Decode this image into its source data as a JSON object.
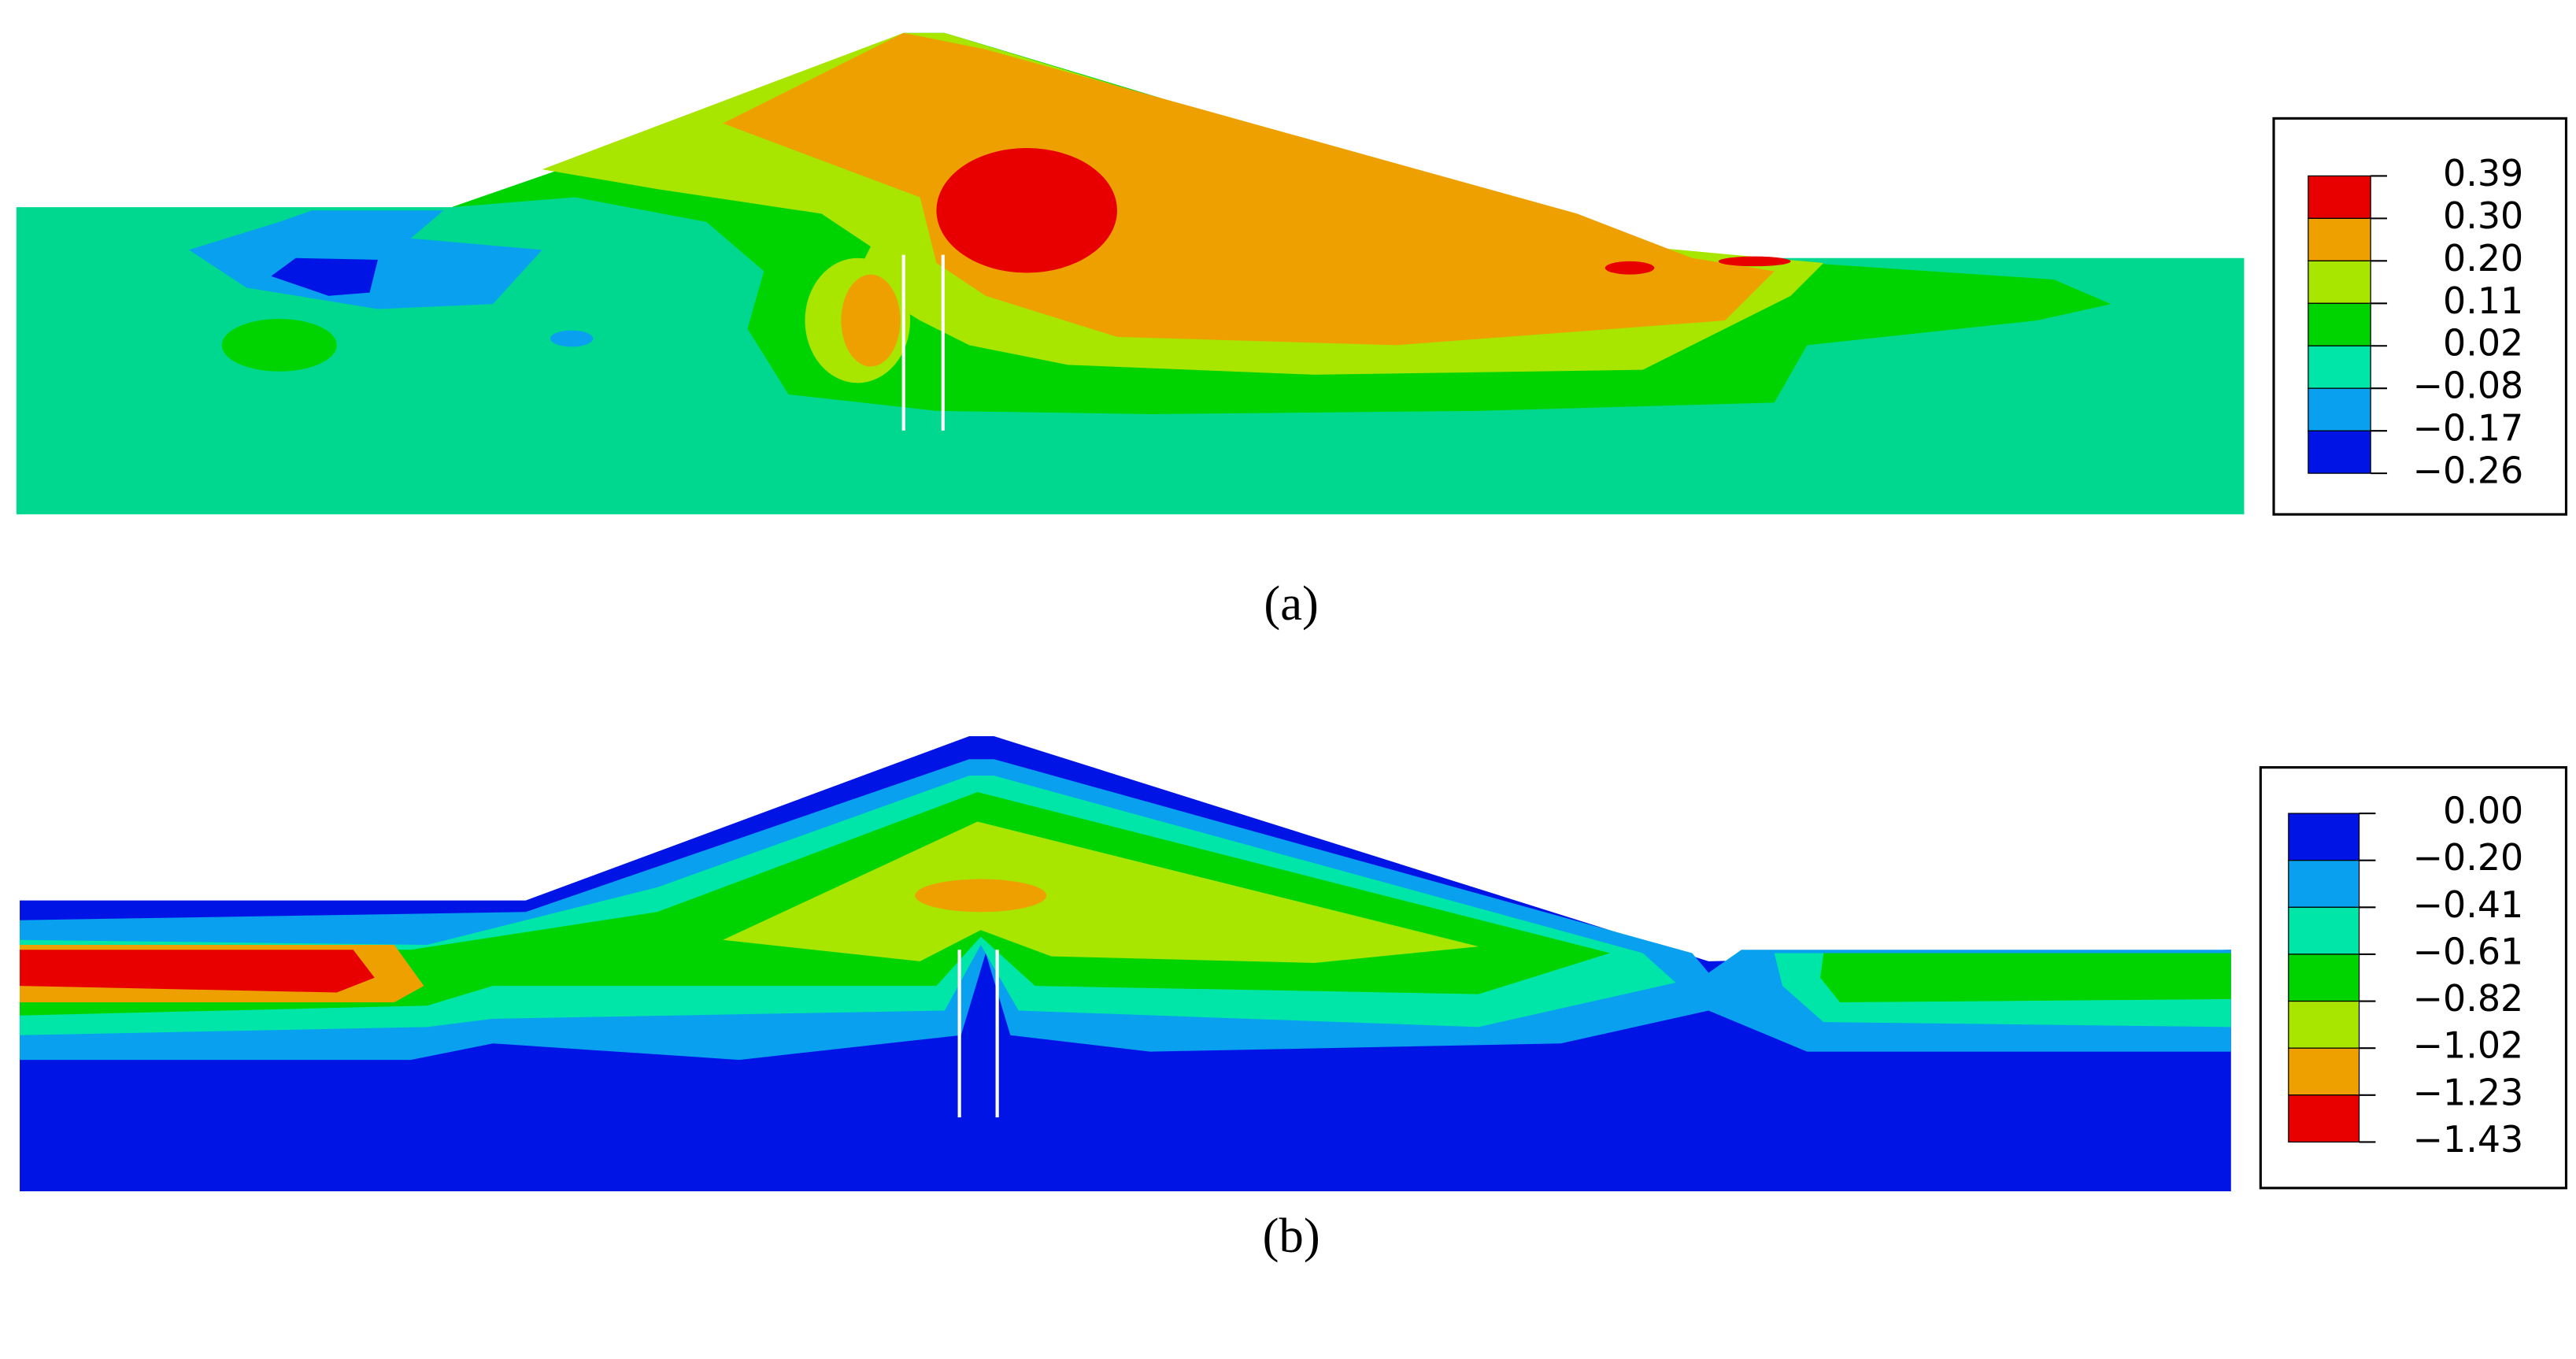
{
  "panels": [
    {
      "caption": "(a)",
      "legend": {
        "levels": [
          {
            "value": 0.39,
            "label": "0.39"
          },
          {
            "value": 0.3,
            "label": "0.30"
          },
          {
            "value": 0.2,
            "label": "0.20"
          },
          {
            "value": 0.11,
            "label": "0.11"
          },
          {
            "value": 0.02,
            "label": "0.02"
          },
          {
            "value": -0.08,
            "label": "−0.08"
          },
          {
            "value": -0.17,
            "label": "−0.17"
          },
          {
            "value": -0.26,
            "label": "−0.26"
          }
        ],
        "colors": [
          "#e80000",
          "#eea000",
          "#a8e600",
          "#00d400",
          "#00e6a8",
          "#0aa0f0",
          "#0014e6"
        ]
      }
    },
    {
      "caption": "(b)",
      "legend": {
        "levels": [
          {
            "value": 0,
            "label": "0.00"
          },
          {
            "value": -0.2,
            "label": "−0.20"
          },
          {
            "value": -0.41,
            "label": "−0.41"
          },
          {
            "value": -0.61,
            "label": "−0.61"
          },
          {
            "value": -0.82,
            "label": "−0.82"
          },
          {
            "value": -1.02,
            "label": "−1.02"
          },
          {
            "value": -1.23,
            "label": "−1.23"
          },
          {
            "value": -1.43,
            "label": "−1.43"
          }
        ],
        "colors": [
          "#0014e6",
          "#0aa0f0",
          "#00e6a8",
          "#00d400",
          "#a8e600",
          "#eea000",
          "#e80000"
        ]
      }
    }
  ]
}
